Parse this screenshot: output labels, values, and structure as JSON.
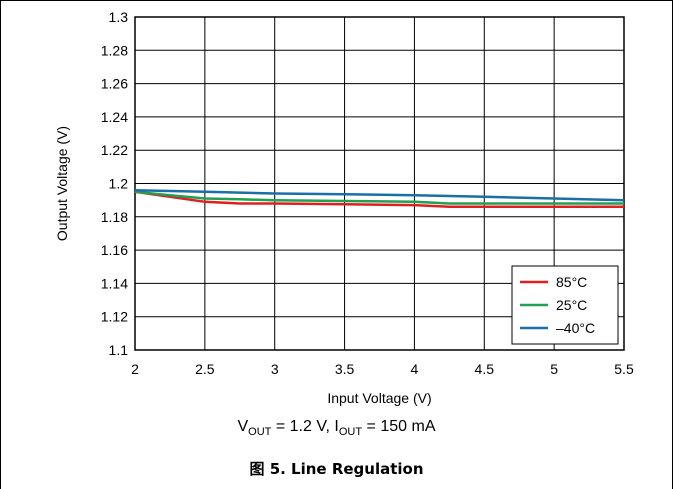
{
  "chart_data": {
    "type": "line",
    "xlabel": "Input Voltage (V)",
    "ylabel": "Output Voltage (V)",
    "xlim": [
      2,
      5.5
    ],
    "ylim": [
      1.1,
      1.3
    ],
    "x_ticks": [
      "2",
      "2.5",
      "3",
      "3.5",
      "4",
      "4.5",
      "5",
      "5.5"
    ],
    "y_ticks": [
      "1.1",
      "1.12",
      "1.14",
      "1.16",
      "1.18",
      "1.2",
      "1.22",
      "1.24",
      "1.26",
      "1.28",
      "1.3"
    ],
    "grid": true,
    "legend_position": "bottom-right",
    "series": [
      {
        "name": "85°C",
        "color": "#e02020",
        "x": [
          2,
          2.25,
          2.5,
          2.75,
          3,
          3.5,
          4,
          4.25,
          4.5,
          5,
          5.5
        ],
        "y": [
          1.195,
          1.192,
          1.189,
          1.188,
          1.188,
          1.1875,
          1.187,
          1.186,
          1.186,
          1.186,
          1.186
        ]
      },
      {
        "name": "25°C",
        "color": "#20a050",
        "x": [
          2,
          2.25,
          2.5,
          2.75,
          3,
          3.5,
          4,
          4.25,
          4.5,
          5,
          5.5
        ],
        "y": [
          1.195,
          1.193,
          1.191,
          1.1905,
          1.19,
          1.1895,
          1.189,
          1.188,
          1.188,
          1.188,
          1.188
        ]
      },
      {
        "name": "–40°C",
        "color": "#1a6fa8",
        "x": [
          2,
          2.5,
          3,
          3.5,
          4,
          4.5,
          5,
          5.5
        ],
        "y": [
          1.196,
          1.195,
          1.194,
          1.1935,
          1.193,
          1.192,
          1.191,
          1.19
        ]
      }
    ]
  },
  "conditions": {
    "v_out_symbol": "V",
    "v_out_sub": "OUT",
    "v_out_value": " = 1.2 V, ",
    "i_out_symbol": "I",
    "i_out_sub": "OUT",
    "i_out_value": " = 150 mA"
  },
  "caption": "图 5. Line Regulation"
}
